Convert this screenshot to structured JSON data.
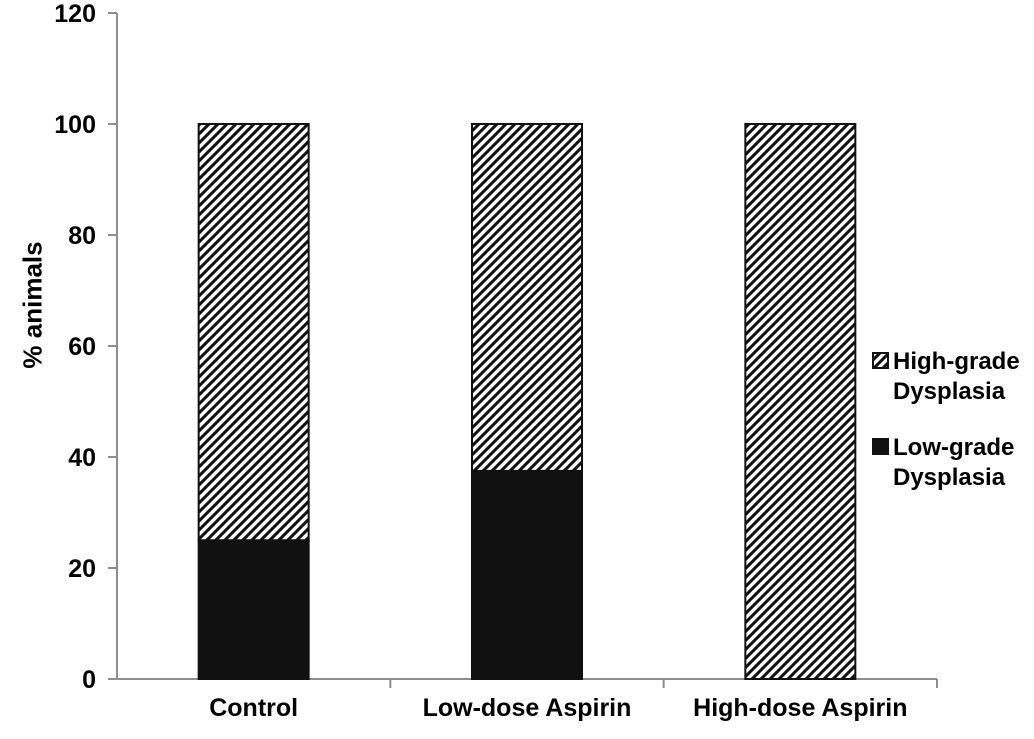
{
  "chart_data": {
    "type": "bar",
    "stacked": true,
    "title": "",
    "xlabel": "",
    "ylabel": "% animals",
    "ylim": [
      0,
      120
    ],
    "yticks": [
      0,
      20,
      40,
      60,
      80,
      100,
      120
    ],
    "grid": false,
    "legend_position": "right",
    "categories": [
      "Control",
      "Low-dose Aspirin",
      "High-dose Aspirin"
    ],
    "series": [
      {
        "name": "Low-grade Dysplasia",
        "style": "solid-black",
        "values": [
          25,
          37.5,
          0
        ]
      },
      {
        "name": "High-grade Dysplasia",
        "style": "diagonal-hatch",
        "values": [
          75,
          62.5,
          100
        ]
      }
    ],
    "legend": [
      {
        "line1": "High-grade",
        "line2": "Dysplasia",
        "marker": "hatched-square"
      },
      {
        "line1": "Low-grade",
        "line2": "Dysplasia",
        "marker": "solid-black-square"
      }
    ]
  },
  "colors": {
    "background": "#ffffff",
    "bar_fill": "#111111",
    "hatch_line": "#111111",
    "axis": "#8e8e8e",
    "text": "#000000"
  }
}
